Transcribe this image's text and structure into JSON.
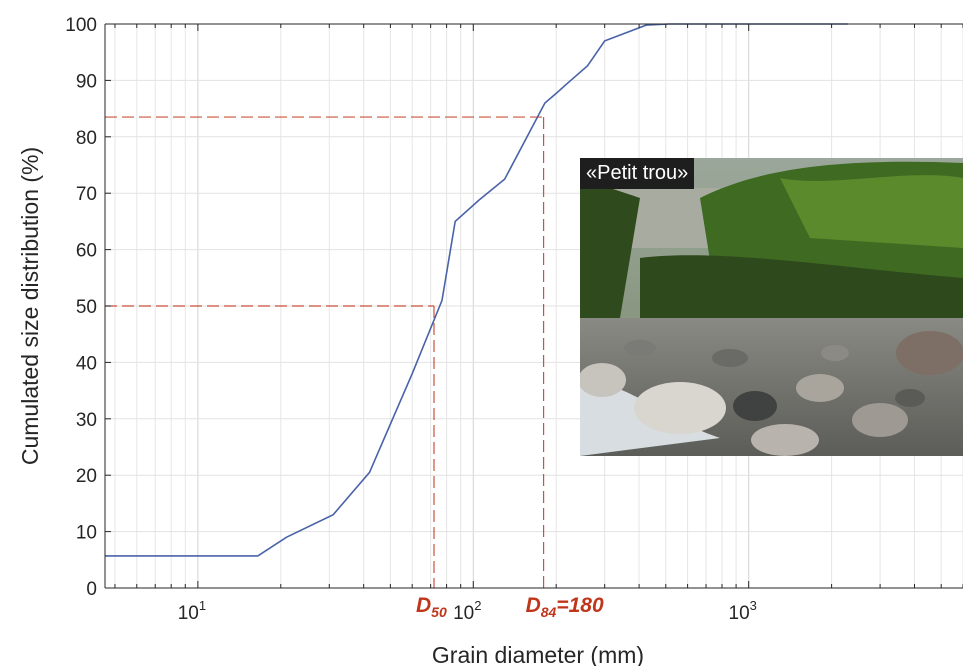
{
  "chart_data": {
    "type": "line",
    "xlabel": "Grain diameter (mm)",
    "ylabel": "Cumulated size distribution (%)",
    "xscale": "log",
    "xlim": [
      4.6,
      6000
    ],
    "ylim": [
      0,
      100
    ],
    "grid": true,
    "y_ticks": [
      "0",
      "10",
      "20",
      "30",
      "40",
      "50",
      "60",
      "70",
      "80",
      "90",
      "100"
    ],
    "x_ticks": [
      {
        "value": 10,
        "base": "10",
        "exp": "1"
      },
      {
        "value": 100,
        "base": "10",
        "exp": "2"
      },
      {
        "value": 1000,
        "base": "10",
        "exp": "3"
      }
    ],
    "series": [
      {
        "x": [
          4.6,
          9.6,
          16.5,
          21,
          31,
          42,
          60,
          77,
          86,
          105,
          130,
          182,
          200,
          220,
          260,
          300,
          425,
          514,
          1000,
          2290
        ],
        "y": [
          5.7,
          5.7,
          5.7,
          9,
          13,
          20.5,
          38,
          51,
          65,
          68.8,
          72.5,
          86,
          87.7,
          89.5,
          92.6,
          97,
          99.8,
          100,
          100,
          100
        ],
        "color": "#4a63a8"
      }
    ],
    "reference_lines": [
      {
        "y": 50,
        "x": 72
      },
      {
        "y": 83.5,
        "x": 180
      }
    ],
    "annotations": [
      {
        "base": "D",
        "sub": "50",
        "rest": "",
        "x": 72
      },
      {
        "base": "D",
        "sub": "84",
        "rest": "=180",
        "x": 180
      }
    ],
    "reference_color": "#c0361a"
  },
  "photo": {
    "caption": "«Petit trou»"
  }
}
